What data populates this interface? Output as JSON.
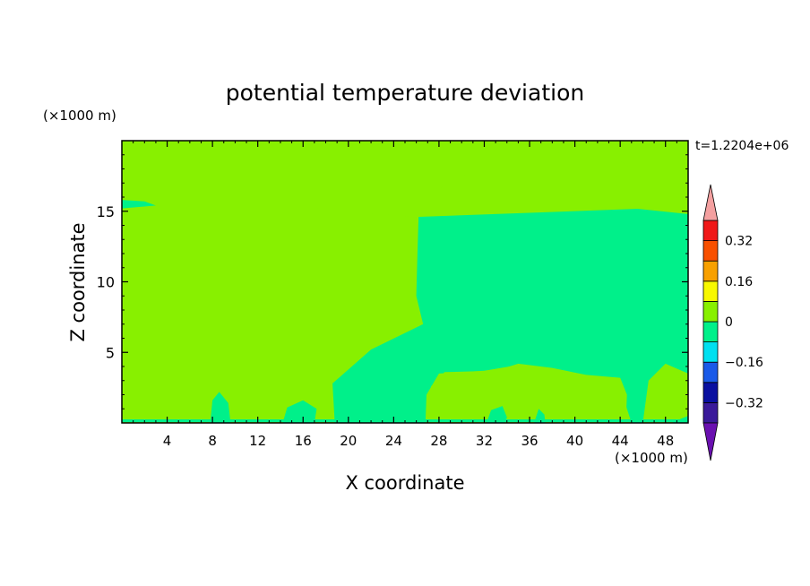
{
  "chart_data": {
    "type": "heatmap",
    "title": "potential temperature deviation",
    "xlabel": "X coordinate",
    "ylabel": "Z coordinate",
    "x_unit": "(×1000 m)",
    "y_unit": "(×1000 m)",
    "time_label": "t=1.2204e+06",
    "xlim": [
      0,
      50
    ],
    "ylim": [
      0,
      20
    ],
    "x_ticks": [
      4,
      8,
      12,
      16,
      20,
      24,
      28,
      32,
      36,
      40,
      44,
      48
    ],
    "y_ticks": [
      5,
      10,
      15
    ],
    "colorbar": {
      "levels": [
        -0.4,
        -0.32,
        -0.24,
        -0.16,
        -0.08,
        0,
        0.08,
        0.16,
        0.24,
        0.32,
        0.4
      ],
      "colors": [
        "#3a1a9a",
        "#0a10a0",
        "#1a5ae8",
        "#00e0f0",
        "#00f08a",
        "#88f000",
        "#f8f800",
        "#f8a000",
        "#f85000",
        "#f01818"
      ],
      "under_color": "#6a10b0",
      "over_color": "#f4a0a0",
      "tick_labels": [
        {
          "value": 0.32,
          "label": "0.32"
        },
        {
          "value": 0.16,
          "label": "0.16"
        },
        {
          "value": 0,
          "label": "0"
        },
        {
          "value": -0.16,
          "label": "−0.16"
        },
        {
          "value": -0.32,
          "label": "−0.32"
        }
      ]
    },
    "regions": [
      {
        "level": "0 to 0.08",
        "color": "#88f000",
        "outline": [
          [
            0,
            12
          ],
          [
            0,
            15.2
          ],
          [
            4,
            15.4
          ],
          [
            26,
            14.7
          ],
          [
            26,
            12
          ],
          [
            25.8,
            9
          ],
          [
            26.5,
            7
          ],
          [
            23,
            5.2
          ],
          [
            19,
            3
          ],
          [
            19,
            0
          ],
          [
            0,
            0
          ]
        ]
      },
      {
        "level": "-0.08 to 0",
        "color": "#00f08a",
        "outline": [
          [
            26.2,
            14.7
          ],
          [
            26.1,
            12
          ],
          [
            26,
            9
          ],
          [
            26.6,
            7
          ],
          [
            22,
            5.2
          ],
          [
            18.6,
            2.8
          ],
          [
            18.8,
            0
          ],
          [
            26.8,
            0
          ],
          [
            26.9,
            2
          ],
          [
            28,
            3.5
          ],
          [
            32,
            3.7
          ],
          [
            35,
            4.1
          ],
          [
            40,
            3.3
          ],
          [
            43.8,
            3
          ],
          [
            45,
            0
          ],
          [
            50,
            0
          ],
          [
            50,
            11
          ],
          [
            47.6,
            8.6
          ],
          [
            47,
            6
          ],
          [
            48,
            4
          ],
          [
            50,
            3.2
          ],
          [
            50,
            14.8
          ],
          [
            44,
            15.3
          ],
          [
            26.2,
            14.7
          ]
        ]
      },
      {
        "level": "0 to 0.08",
        "color": "#88f000",
        "outline": [
          [
            17,
            15.2
          ],
          [
            27,
            16
          ],
          [
            29.5,
            17.4
          ],
          [
            38,
            19.2
          ],
          [
            44,
            18.6
          ],
          [
            46,
            17.3
          ],
          [
            40,
            16
          ],
          [
            50,
            15.8
          ],
          [
            50,
            15.3
          ],
          [
            26,
            14.6
          ]
        ]
      },
      {
        "level": "0 to 0.08",
        "color": "#88f000",
        "outline": [
          [
            5,
            19.6
          ],
          [
            6,
            18.6
          ],
          [
            10,
            17.9
          ],
          [
            15,
            17.8
          ],
          [
            18,
            18.4
          ],
          [
            19.2,
            19.6
          ]
        ]
      },
      {
        "level": "0 to 0.08",
        "color": "#88f000",
        "outline": [
          [
            27,
            0
          ],
          [
            27.3,
            2.6
          ],
          [
            28.5,
            3.6
          ],
          [
            33,
            3.7
          ],
          [
            35,
            4.2
          ],
          [
            38,
            3.9
          ],
          [
            41,
            3.4
          ],
          [
            44,
            3.2
          ],
          [
            44.6,
            2
          ],
          [
            44.5,
            0
          ]
        ]
      },
      {
        "level": "0 to 0.08",
        "color": "#88f000",
        "outline": [
          [
            46,
            0
          ],
          [
            48.5,
            0
          ],
          [
            50,
            0.5
          ],
          [
            50,
            3.5
          ],
          [
            48,
            4.2
          ],
          [
            46.5,
            3
          ]
        ]
      },
      {
        "level": "-0.08 to 0",
        "color": "#00f08a",
        "outline": [
          [
            7.8,
            0
          ],
          [
            8,
            1.6
          ],
          [
            8.6,
            2.2
          ],
          [
            9.4,
            1.4
          ],
          [
            9.6,
            0
          ]
        ]
      },
      {
        "level": "-0.08 to 0",
        "color": "#00f08a",
        "outline": [
          [
            14.2,
            0
          ],
          [
            14.6,
            1.1
          ],
          [
            16,
            1.6
          ],
          [
            17.2,
            1
          ],
          [
            17,
            0
          ]
        ]
      },
      {
        "level": "-0.08 to 0",
        "color": "#00f08a",
        "outline": [
          [
            32.2,
            0
          ],
          [
            32.6,
            0.9
          ],
          [
            33.6,
            1.2
          ],
          [
            34,
            0.4
          ],
          [
            33.8,
            0
          ]
        ]
      },
      {
        "level": "-0.08 to 0",
        "color": "#00f08a",
        "outline": [
          [
            36.4,
            0
          ],
          [
            36.8,
            1
          ],
          [
            37.3,
            0.6
          ],
          [
            37.4,
            0
          ]
        ]
      },
      {
        "level": "-0.08 to 0",
        "color": "#00f08a",
        "outline": [
          [
            0,
            15.2
          ],
          [
            0,
            15.8
          ],
          [
            2,
            15.7
          ],
          [
            3,
            15.4
          ]
        ]
      },
      {
        "level": "0 to 0.08",
        "color": "#88f000",
        "outline": [
          [
            4,
            14.8
          ],
          [
            10,
            14.8
          ],
          [
            26,
            14.6
          ],
          [
            26,
            14.55
          ],
          [
            4,
            14.65
          ]
        ]
      }
    ]
  }
}
